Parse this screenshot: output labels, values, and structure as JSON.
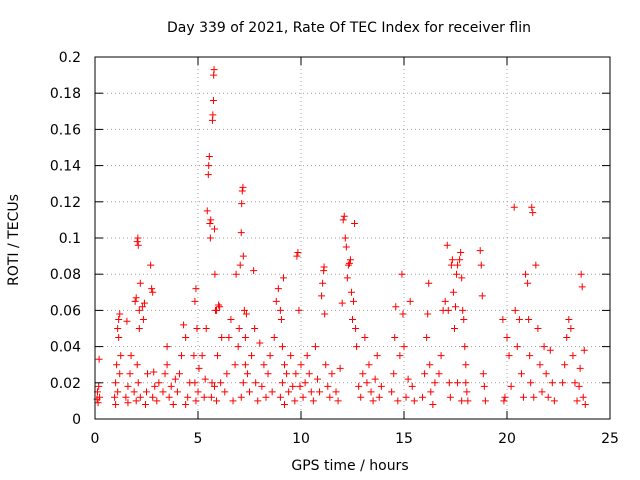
{
  "chart_data": {
    "type": "scatter",
    "title": "Day 339 of 2021, Rate Of TEC Index for receiver flin",
    "xlabel": "GPS time / hours",
    "ylabel": "ROTI / TECUs",
    "xlim": [
      0,
      25
    ],
    "ylim": [
      0,
      0.2
    ],
    "xticks": [
      0,
      5,
      10,
      15,
      20,
      25
    ],
    "yticks": [
      0,
      0.02,
      0.04,
      0.06,
      0.08,
      0.1,
      0.12,
      0.14,
      0.16,
      0.18,
      0.2
    ],
    "xtick_labels": [
      "0",
      "5",
      "10",
      "15",
      "20",
      "25"
    ],
    "ytick_labels": [
      "0",
      "0.02",
      "0.04",
      "0.06",
      "0.08",
      "0.1",
      "0.12",
      "0.14",
      "0.16",
      "0.18",
      "0.2"
    ],
    "grid": true,
    "marker": "plus",
    "series": [
      {
        "color": "#ff0000",
        "points": [
          [
            0.1,
            0.011
          ],
          [
            0.12,
            0.015
          ],
          [
            0.15,
            0.009
          ],
          [
            0.18,
            0.018
          ],
          [
            0.2,
            0.033
          ],
          [
            0.22,
            0.012
          ],
          [
            0.95,
            0.012
          ],
          [
            1.0,
            0.02
          ],
          [
            1.05,
            0.03
          ],
          [
            1.1,
            0.05
          ],
          [
            1.15,
            0.055
          ],
          [
            1.2,
            0.058
          ],
          [
            1.0,
            0.008
          ],
          [
            1.1,
            0.015
          ],
          [
            1.2,
            0.025
          ],
          [
            1.25,
            0.035
          ],
          [
            1.15,
            0.045
          ],
          [
            1.5,
            0.012
          ],
          [
            1.6,
            0.018
          ],
          [
            1.7,
            0.025
          ],
          [
            1.6,
            0.009
          ],
          [
            1.75,
            0.035
          ],
          [
            1.55,
            0.054
          ],
          [
            1.9,
            0.015
          ],
          [
            1.95,
            0.065
          ],
          [
            2.0,
            0.067
          ],
          [
            2.05,
            0.098
          ],
          [
            2.08,
            0.1
          ],
          [
            2.1,
            0.096
          ],
          [
            2.15,
            0.06
          ],
          [
            2.0,
            0.01
          ],
          [
            2.1,
            0.02
          ],
          [
            2.2,
            0.012
          ],
          [
            2.05,
            0.03
          ],
          [
            2.15,
            0.05
          ],
          [
            2.2,
            0.075
          ],
          [
            2.3,
            0.062
          ],
          [
            2.4,
            0.064
          ],
          [
            2.35,
            0.055
          ],
          [
            2.5,
            0.015
          ],
          [
            2.45,
            0.008
          ],
          [
            2.55,
            0.025
          ],
          [
            2.7,
            0.085
          ],
          [
            2.75,
            0.072
          ],
          [
            2.8,
            0.07
          ],
          [
            2.8,
            0.012
          ],
          [
            2.9,
            0.018
          ],
          [
            2.85,
            0.026
          ],
          [
            3.0,
            0.01
          ],
          [
            3.1,
            0.02
          ],
          [
            3.3,
            0.015
          ],
          [
            3.4,
            0.025
          ],
          [
            3.5,
            0.03
          ],
          [
            3.6,
            0.012
          ],
          [
            3.7,
            0.018
          ],
          [
            3.8,
            0.008
          ],
          [
            3.9,
            0.022
          ],
          [
            3.5,
            0.04
          ],
          [
            4.0,
            0.015
          ],
          [
            4.1,
            0.025
          ],
          [
            4.2,
            0.035
          ],
          [
            4.3,
            0.052
          ],
          [
            4.4,
            0.045
          ],
          [
            4.5,
            0.012
          ],
          [
            4.6,
            0.02
          ],
          [
            4.4,
            0.008
          ],
          [
            4.8,
            0.035
          ],
          [
            4.85,
            0.065
          ],
          [
            4.9,
            0.072
          ],
          [
            4.95,
            0.05
          ],
          [
            4.9,
            0.01
          ],
          [
            4.85,
            0.02
          ],
          [
            5.0,
            0.015
          ],
          [
            5.05,
            0.028
          ],
          [
            5.2,
            0.035
          ],
          [
            5.3,
            0.012
          ],
          [
            5.35,
            0.022
          ],
          [
            5.4,
            0.05
          ],
          [
            5.45,
            0.115
          ],
          [
            5.5,
            0.135
          ],
          [
            5.52,
            0.14
          ],
          [
            5.55,
            0.145
          ],
          [
            5.58,
            0.108
          ],
          [
            5.6,
            0.1
          ],
          [
            5.62,
            0.11
          ],
          [
            5.65,
            0.012
          ],
          [
            5.68,
            0.02
          ],
          [
            5.7,
            0.165
          ],
          [
            5.72,
            0.168
          ],
          [
            5.75,
            0.176
          ],
          [
            5.76,
            0.19
          ],
          [
            5.78,
            0.193
          ],
          [
            5.8,
            0.105
          ],
          [
            5.82,
            0.08
          ],
          [
            5.85,
            0.06
          ],
          [
            5.9,
            0.06
          ],
          [
            5.95,
            0.035
          ],
          [
            5.8,
            0.018
          ],
          [
            5.9,
            0.01
          ],
          [
            6.0,
            0.063
          ],
          [
            6.05,
            0.062
          ],
          [
            6.1,
            0.02
          ],
          [
            6.15,
            0.045
          ],
          [
            6.3,
            0.015
          ],
          [
            6.4,
            0.025
          ],
          [
            6.5,
            0.045
          ],
          [
            6.6,
            0.055
          ],
          [
            6.7,
            0.01
          ],
          [
            6.8,
            0.03
          ],
          [
            6.85,
            0.08
          ],
          [
            6.95,
            0.04
          ],
          [
            7.0,
            0.05
          ],
          [
            7.05,
            0.085
          ],
          [
            7.1,
            0.103
          ],
          [
            7.12,
            0.119
          ],
          [
            7.15,
            0.126
          ],
          [
            7.18,
            0.128
          ],
          [
            7.2,
            0.09
          ],
          [
            7.25,
            0.06
          ],
          [
            7.3,
            0.045
          ],
          [
            7.1,
            0.012
          ],
          [
            7.2,
            0.02
          ],
          [
            7.3,
            0.03
          ],
          [
            7.35,
            0.058
          ],
          [
            7.4,
            0.025
          ],
          [
            7.5,
            0.015
          ],
          [
            7.6,
            0.035
          ],
          [
            7.7,
            0.082
          ],
          [
            7.75,
            0.05
          ],
          [
            7.8,
            0.02
          ],
          [
            7.9,
            0.01
          ],
          [
            8.0,
            0.042
          ],
          [
            8.1,
            0.018
          ],
          [
            8.2,
            0.03
          ],
          [
            8.3,
            0.012
          ],
          [
            8.4,
            0.025
          ],
          [
            8.5,
            0.035
          ],
          [
            8.6,
            0.015
          ],
          [
            8.7,
            0.045
          ],
          [
            8.8,
            0.065
          ],
          [
            8.9,
            0.072
          ],
          [
            9.0,
            0.06
          ],
          [
            9.05,
            0.055
          ],
          [
            9.1,
            0.04
          ],
          [
            9.15,
            0.078
          ],
          [
            9.2,
            0.03
          ],
          [
            9.0,
            0.012
          ],
          [
            9.1,
            0.02
          ],
          [
            9.2,
            0.008
          ],
          [
            9.3,
            0.025
          ],
          [
            9.4,
            0.015
          ],
          [
            9.5,
            0.035
          ],
          [
            9.6,
            0.018
          ],
          [
            9.7,
            0.01
          ],
          [
            9.75,
            0.025
          ],
          [
            9.8,
            0.09
          ],
          [
            9.85,
            0.092
          ],
          [
            9.9,
            0.06
          ],
          [
            9.95,
            0.018
          ],
          [
            10.0,
            0.03
          ],
          [
            10.1,
            0.012
          ],
          [
            10.2,
            0.02
          ],
          [
            10.3,
            0.035
          ],
          [
            10.4,
            0.025
          ],
          [
            10.5,
            0.015
          ],
          [
            10.6,
            0.01
          ],
          [
            10.7,
            0.04
          ],
          [
            10.8,
            0.022
          ],
          [
            10.9,
            0.015
          ],
          [
            11.0,
            0.068
          ],
          [
            11.05,
            0.075
          ],
          [
            11.1,
            0.082
          ],
          [
            11.12,
            0.084
          ],
          [
            11.15,
            0.058
          ],
          [
            11.2,
            0.03
          ],
          [
            11.3,
            0.018
          ],
          [
            11.4,
            0.012
          ],
          [
            11.5,
            0.025
          ],
          [
            11.7,
            0.015
          ],
          [
            11.8,
            0.01
          ],
          [
            11.9,
            0.028
          ],
          [
            12.0,
            0.064
          ],
          [
            12.05,
            0.11
          ],
          [
            12.1,
            0.112
          ],
          [
            12.15,
            0.1
          ],
          [
            12.2,
            0.095
          ],
          [
            12.25,
            0.078
          ],
          [
            12.3,
            0.085
          ],
          [
            12.35,
            0.086
          ],
          [
            12.4,
            0.088
          ],
          [
            12.45,
            0.07
          ],
          [
            12.5,
            0.055
          ],
          [
            12.55,
            0.065
          ],
          [
            12.6,
            0.108
          ],
          [
            12.65,
            0.05
          ],
          [
            12.7,
            0.04
          ],
          [
            12.8,
            0.018
          ],
          [
            12.9,
            0.012
          ],
          [
            13.0,
            0.025
          ],
          [
            13.1,
            0.045
          ],
          [
            13.2,
            0.02
          ],
          [
            13.3,
            0.03
          ],
          [
            13.4,
            0.015
          ],
          [
            13.5,
            0.01
          ],
          [
            13.6,
            0.022
          ],
          [
            13.7,
            0.035
          ],
          [
            13.8,
            0.012
          ],
          [
            13.9,
            0.018
          ],
          [
            14.4,
            0.015
          ],
          [
            14.5,
            0.025
          ],
          [
            14.55,
            0.045
          ],
          [
            14.6,
            0.062
          ],
          [
            14.7,
            0.01
          ],
          [
            14.8,
            0.035
          ],
          [
            14.9,
            0.08
          ],
          [
            14.95,
            0.058
          ],
          [
            15.0,
            0.04
          ],
          [
            15.1,
            0.012
          ],
          [
            15.2,
            0.022
          ],
          [
            15.3,
            0.065
          ],
          [
            15.4,
            0.018
          ],
          [
            15.5,
            0.01
          ],
          [
            15.9,
            0.012
          ],
          [
            16.0,
            0.025
          ],
          [
            16.1,
            0.045
          ],
          [
            16.15,
            0.058
          ],
          [
            16.2,
            0.075
          ],
          [
            16.25,
            0.03
          ],
          [
            16.3,
            0.015
          ],
          [
            16.4,
            0.008
          ],
          [
            16.5,
            0.02
          ],
          [
            16.7,
            0.025
          ],
          [
            16.8,
            0.035
          ],
          [
            16.9,
            0.06
          ],
          [
            17.0,
            0.065
          ],
          [
            17.1,
            0.096
          ],
          [
            17.15,
            0.06
          ],
          [
            17.2,
            0.02
          ],
          [
            17.25,
            0.012
          ],
          [
            17.3,
            0.085
          ],
          [
            17.35,
            0.088
          ],
          [
            17.4,
            0.07
          ],
          [
            17.45,
            0.05
          ],
          [
            17.5,
            0.062
          ],
          [
            17.55,
            0.08
          ],
          [
            17.6,
            0.085
          ],
          [
            17.7,
            0.088
          ],
          [
            17.75,
            0.092
          ],
          [
            17.8,
            0.078
          ],
          [
            17.85,
            0.06
          ],
          [
            17.9,
            0.055
          ],
          [
            17.95,
            0.04
          ],
          [
            18.0,
            0.03
          ],
          [
            18.05,
            0.015
          ],
          [
            18.1,
            0.01
          ],
          [
            18.0,
            0.02
          ],
          [
            17.8,
            0.01
          ],
          [
            17.6,
            0.02
          ],
          [
            18.7,
            0.093
          ],
          [
            18.75,
            0.085
          ],
          [
            18.8,
            0.068
          ],
          [
            18.85,
            0.025
          ],
          [
            18.9,
            0.018
          ],
          [
            18.95,
            0.01
          ],
          [
            19.8,
            0.055
          ],
          [
            19.85,
            0.01
          ],
          [
            19.9,
            0.012
          ],
          [
            20.0,
            0.045
          ],
          [
            20.1,
            0.035
          ],
          [
            20.2,
            0.018
          ],
          [
            20.35,
            0.117
          ],
          [
            20.4,
            0.06
          ],
          [
            20.5,
            0.04
          ],
          [
            20.6,
            0.055
          ],
          [
            20.7,
            0.025
          ],
          [
            20.8,
            0.012
          ],
          [
            20.9,
            0.08
          ],
          [
            21.0,
            0.075
          ],
          [
            21.05,
            0.055
          ],
          [
            21.1,
            0.035
          ],
          [
            21.15,
            0.02
          ],
          [
            21.2,
            0.117
          ],
          [
            21.25,
            0.114
          ],
          [
            21.3,
            0.012
          ],
          [
            21.4,
            0.085
          ],
          [
            21.5,
            0.05
          ],
          [
            21.6,
            0.03
          ],
          [
            21.7,
            0.015
          ],
          [
            21.8,
            0.04
          ],
          [
            21.9,
            0.025
          ],
          [
            22.0,
            0.012
          ],
          [
            22.1,
            0.038
          ],
          [
            22.2,
            0.02
          ],
          [
            22.3,
            0.01
          ],
          [
            22.7,
            0.02
          ],
          [
            22.8,
            0.03
          ],
          [
            22.9,
            0.045
          ],
          [
            23.0,
            0.055
          ],
          [
            23.1,
            0.05
          ],
          [
            23.2,
            0.035
          ],
          [
            23.3,
            0.02
          ],
          [
            23.4,
            0.01
          ],
          [
            23.5,
            0.018
          ],
          [
            23.55,
            0.028
          ],
          [
            23.6,
            0.08
          ],
          [
            23.65,
            0.073
          ],
          [
            23.7,
            0.012
          ],
          [
            23.75,
            0.038
          ],
          [
            23.8,
            0.008
          ]
        ]
      }
    ]
  }
}
